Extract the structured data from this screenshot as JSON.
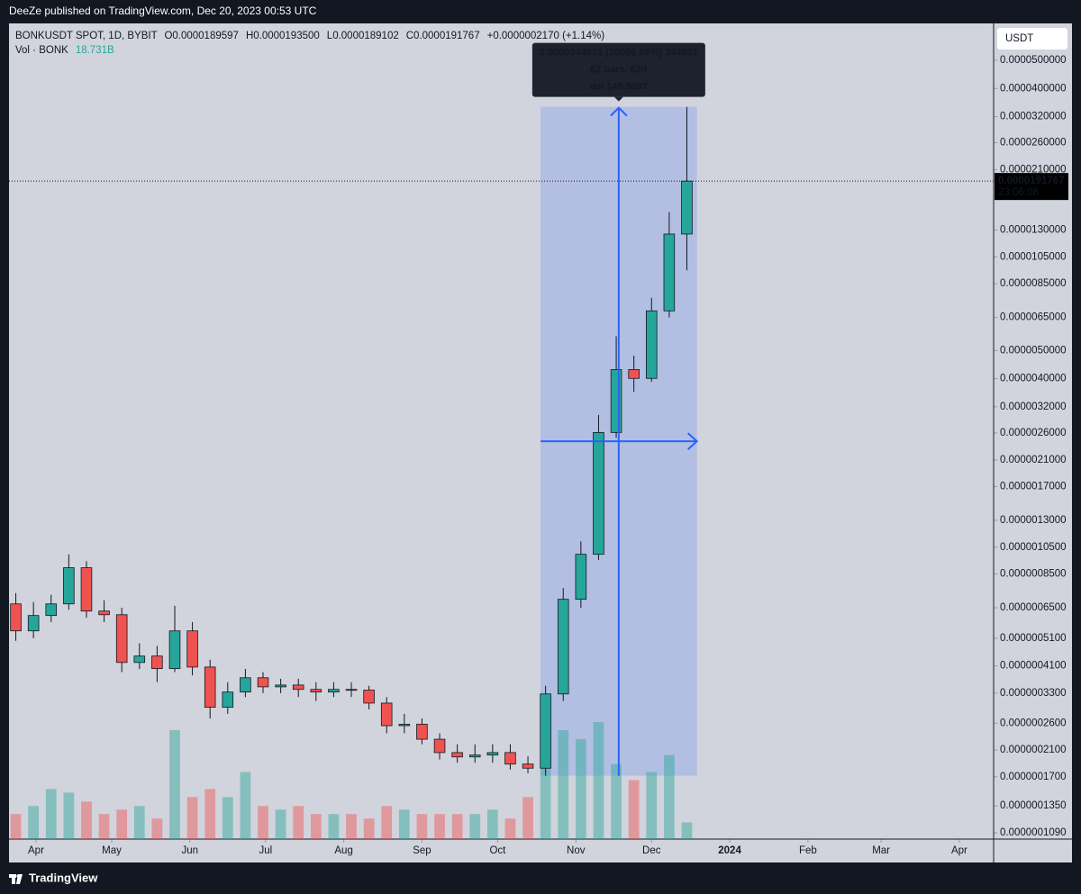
{
  "header": "DeeZe published on TradingView.com, Dec 20, 2023 00:53 UTC",
  "footer": "TradingView",
  "chart_data": {
    "type": "candlestick",
    "title": "BONKUSDT SPOT, 1D, BYBIT",
    "legend_values": [
      "O0.0000189597",
      "H0.0000193500",
      "L0.0000189102",
      "C0.0000191767",
      "+0.0000002170 (+1.14%)"
    ],
    "currency": "USDT",
    "x": [
      -8,
      -1,
      6,
      13,
      20,
      27,
      34,
      41,
      48,
      55,
      62,
      69,
      76,
      83,
      90,
      97,
      104,
      111,
      118,
      125,
      132,
      139,
      146,
      153,
      160,
      167,
      174,
      181,
      188,
      195,
      202,
      209,
      216,
      223,
      230,
      237,
      244,
      251,
      258
    ],
    "open": [
      6.7e-07,
      5.41e-07,
      6.11e-07,
      6.7e-07,
      8.93e-07,
      6.33e-07,
      6.15e-07,
      4.21e-07,
      4.43e-07,
      4.01e-07,
      5.41e-07,
      4.06e-07,
      2.95e-07,
      3.33e-07,
      3.73e-07,
      3.47e-07,
      3.52e-07,
      3.4e-07,
      3.33e-07,
      3.4e-07,
      3.38e-07,
      3.05e-07,
      2.55e-07,
      2.58e-07,
      2.29e-07,
      2.06e-07,
      1.99e-07,
      2.02e-07,
      2.06e-07,
      1.88e-07,
      1.82e-07,
      3.28e-07,
      6.95e-07,
      9.93e-07,
      2.61e-06,
      4.3e-06,
      4.01e-06,
      6.85e-06,
      1.26e-05
    ],
    "high": [
      7.3e-07,
      6.8e-07,
      7.2e-07,
      9.93e-07,
      9.4e-07,
      6.9e-07,
      6.5e-07,
      4.9e-07,
      4.8e-07,
      6.6e-07,
      5.8e-07,
      4.3e-07,
      3.6e-07,
      4e-07,
      3.9e-07,
      3.7e-07,
      3.7e-07,
      3.6e-07,
      3.6e-07,
      3.6e-07,
      3.5e-07,
      3.2e-07,
      2.8e-07,
      2.7e-07,
      2.4e-07,
      2.2e-07,
      2.2e-07,
      2.2e-07,
      2.2e-07,
      2e-07,
      3.5e-07,
      7.6e-07,
      1.1e-06,
      3e-06,
      5.6e-06,
      4.8e-06,
      7.6e-06,
      1.5e-05,
      3.4574e-05
    ],
    "low": [
      5e-07,
      5.1e-07,
      5.8e-07,
      6.4e-07,
      6e-07,
      5.8e-07,
      3.9e-07,
      4e-07,
      3.6e-07,
      3.9e-07,
      3.8e-07,
      2.7e-07,
      2.8e-07,
      3.2e-07,
      3.3e-07,
      3.3e-07,
      3.2e-07,
      3.1e-07,
      3.2e-07,
      3.2e-07,
      2.9e-07,
      2.4e-07,
      2.4e-07,
      2.2e-07,
      1.95e-07,
      1.9e-07,
      1.9e-07,
      1.9e-07,
      1.8e-07,
      1.75e-07,
      1.7145e-07,
      3.1e-07,
      6.5e-07,
      9.5e-07,
      2.5e-06,
      3.6e-06,
      3.9e-06,
      6.5e-06,
      9.45e-06
    ],
    "close": [
      5.41e-07,
      6.11e-07,
      6.7e-07,
      8.93e-07,
      6.33e-07,
      6.15e-07,
      4.21e-07,
      4.43e-07,
      4.01e-07,
      5.41e-07,
      4.06e-07,
      2.95e-07,
      3.33e-07,
      3.73e-07,
      3.47e-07,
      3.52e-07,
      3.4e-07,
      3.33e-07,
      3.4e-07,
      3.38e-07,
      3.05e-07,
      2.55e-07,
      2.58e-07,
      2.29e-07,
      2.06e-07,
      1.99e-07,
      2.02e-07,
      2.06e-07,
      1.88e-07,
      1.82e-07,
      3.28e-07,
      6.95e-07,
      9.93e-07,
      2.61e-06,
      4.3e-06,
      4.01e-06,
      6.85e-06,
      1.26e-05,
      1.91767e-05
    ],
    "up_color": "#26a69a",
    "down_color": "#ef5350",
    "volume": {
      "name": "Vol · BONK",
      "last_label": "18.731B",
      "values": [
        28,
        37,
        56,
        52,
        42,
        28,
        33,
        37,
        23,
        122,
        47,
        56,
        47,
        75,
        37,
        33,
        37,
        28,
        28,
        28,
        23,
        37,
        33,
        28,
        28,
        28,
        28,
        33,
        23,
        47,
        103,
        122,
        112,
        131,
        84,
        66,
        75,
        94,
        18.731
      ]
    },
    "log_scale": true,
    "grid": false,
    "ylim": [
      1.037e-07,
      6.7e-05
    ],
    "yticks": [
      {
        "value": 5e-05,
        "label": "0.0000500000"
      },
      {
        "value": 4e-05,
        "label": "0.0000400000"
      },
      {
        "value": 3.2e-05,
        "label": "0.0000320000"
      },
      {
        "value": 2.6e-05,
        "label": "0.0000260000"
      },
      {
        "value": 2.1e-05,
        "label": "0.0000210000"
      },
      {
        "value": 1.3e-05,
        "label": "0.0000130000"
      },
      {
        "value": 1.05e-05,
        "label": "0.0000105000"
      },
      {
        "value": 8.5e-06,
        "label": "0.0000085000"
      },
      {
        "value": 6.5e-06,
        "label": "0.0000065000"
      },
      {
        "value": 5e-06,
        "label": "0.0000050000"
      },
      {
        "value": 4e-06,
        "label": "0.0000040000"
      },
      {
        "value": 3.2e-06,
        "label": "0.0000032000"
      },
      {
        "value": 2.6e-06,
        "label": "0.0000026000"
      },
      {
        "value": 2.1e-06,
        "label": "0.0000021000"
      },
      {
        "value": 1.7e-06,
        "label": "0.0000017000"
      },
      {
        "value": 1.3e-06,
        "label": "0.0000013000"
      },
      {
        "value": 1.05e-06,
        "label": "0.0000010500"
      },
      {
        "value": 8.5e-07,
        "label": "0.0000008500"
      },
      {
        "value": 6.5e-07,
        "label": "0.0000006500"
      },
      {
        "value": 5.1e-07,
        "label": "0.0000005100"
      },
      {
        "value": 4.1e-07,
        "label": "0.0000004100"
      },
      {
        "value": 3.3e-07,
        "label": "0.0000003300"
      },
      {
        "value": 2.6e-07,
        "label": "0.0000002600"
      },
      {
        "value": 2.1e-07,
        "label": "0.0000002100"
      },
      {
        "value": 1.7e-07,
        "label": "0.0000001700"
      },
      {
        "value": 1.35e-07,
        "label": "0.0000001350"
      },
      {
        "value": 1.09e-07,
        "label": "0.0000001090"
      }
    ],
    "xlim": [
      -10.7,
      379.6
    ],
    "xticks": [
      {
        "value": 0,
        "label": "Apr"
      },
      {
        "value": 30,
        "label": "May"
      },
      {
        "value": 61,
        "label": "Jun"
      },
      {
        "value": 91,
        "label": "Jul"
      },
      {
        "value": 122,
        "label": "Aug"
      },
      {
        "value": 153,
        "label": "Sep"
      },
      {
        "value": 183,
        "label": "Oct"
      },
      {
        "value": 214,
        "label": "Nov"
      },
      {
        "value": 244,
        "label": "Dec"
      },
      {
        "value": 275,
        "label": "2024"
      },
      {
        "value": 306,
        "label": "Feb"
      },
      {
        "value": 335,
        "label": "Mar"
      },
      {
        "value": 366,
        "label": "Apr"
      }
    ],
    "last_price": {
      "value": 1.91767e-05,
      "label": "0.0000191767"
    },
    "countdown": "23:06:08",
    "measure": {
      "from_x": 200,
      "to_x": 262,
      "low": 1.7145e-07,
      "high": 3.4574e-05,
      "color": "#2962ff",
      "lines": [
        "0.0000344031 (20066.08%) 344031",
        "62 bars, 62d",
        "Vol 148.969T"
      ]
    }
  }
}
